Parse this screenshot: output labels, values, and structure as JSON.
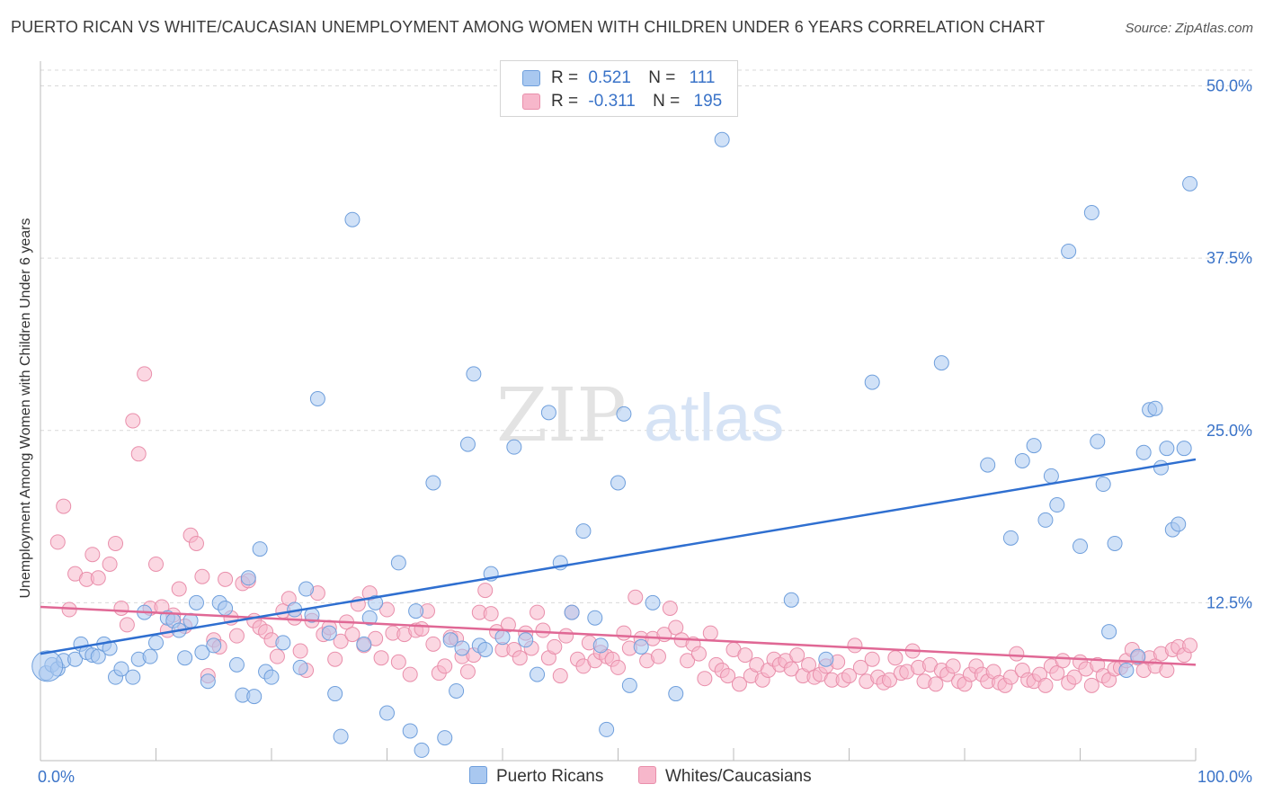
{
  "title": "PUERTO RICAN VS WHITE/CAUCASIAN UNEMPLOYMENT AMONG WOMEN WITH CHILDREN UNDER 6 YEARS CORRELATION CHART",
  "source": "Source: ZipAtlas.com",
  "watermark": {
    "zip": "ZIP",
    "atlas": "atlas"
  },
  "colors": {
    "blue_fill": "#a9c8f0",
    "blue_stroke": "#6f9fdc",
    "blue_line": "#2f6fd0",
    "pink_fill": "#f7b7cb",
    "pink_stroke": "#e98fab",
    "pink_line": "#e06895",
    "axis_label_blue": "#3a73c8",
    "grid": "#d9d9d9"
  },
  "legend": {
    "rows": [
      {
        "r_label": "R =",
        "r_value": "0.521",
        "n_label": "N =",
        "n_value": "111"
      },
      {
        "r_label": "R =",
        "r_value": "-0.311",
        "n_label": "N =",
        "n_value": "195"
      }
    ]
  },
  "chart_data": {
    "type": "scatter",
    "title": "PUERTO RICAN VS WHITE/CAUCASIAN UNEMPLOYMENT AMONG WOMEN WITH CHILDREN UNDER 6 YEARS CORRELATION CHART",
    "xlabel": "",
    "ylabel": "Unemployment Among Women with Children Under 6 years",
    "xlim": [
      0,
      100
    ],
    "ylim": [
      0,
      50
    ],
    "x_tick_labels": [
      "0.0%",
      "100.0%"
    ],
    "y_ticks": [
      12.5,
      25.0,
      37.5,
      50.0
    ],
    "y_tick_labels": [
      "12.5%",
      "25.0%",
      "37.5%",
      "50.0%"
    ],
    "grid": "horizontal dashed",
    "legend_position": "top-center",
    "series": [
      {
        "name": "Puerto Ricans",
        "R": 0.521,
        "N": 111,
        "trend": {
          "x": [
            0,
            100
          ],
          "y": [
            8.8,
            22.9
          ]
        },
        "points": [
          [
            0.5,
            7.4
          ],
          [
            1,
            8
          ],
          [
            1.5,
            7.7
          ],
          [
            2,
            8.3
          ],
          [
            3,
            8.4
          ],
          [
            3.5,
            9.5
          ],
          [
            4,
            8.9
          ],
          [
            4.5,
            8.7
          ],
          [
            5,
            8.6
          ],
          [
            5.5,
            9.5
          ],
          [
            6,
            9.2
          ],
          [
            6.5,
            7.1
          ],
          [
            7,
            7.7
          ],
          [
            8,
            7.1
          ],
          [
            8.5,
            8.4
          ],
          [
            9,
            11.8
          ],
          [
            9.5,
            8.6
          ],
          [
            10,
            9.6
          ],
          [
            11,
            11.4
          ],
          [
            11.5,
            11.2
          ],
          [
            12,
            10.5
          ],
          [
            12.5,
            8.5
          ],
          [
            13,
            11.2
          ],
          [
            13.5,
            12.5
          ],
          [
            14,
            8.9
          ],
          [
            14.5,
            6.8
          ],
          [
            15,
            9.4
          ],
          [
            15.5,
            12.5
          ],
          [
            16,
            12.1
          ],
          [
            17,
            8
          ],
          [
            17.5,
            5.8
          ],
          [
            18,
            14.3
          ],
          [
            18.5,
            5.7
          ],
          [
            19,
            16.4
          ],
          [
            19.5,
            7.5
          ],
          [
            20,
            7.1
          ],
          [
            21,
            9.6
          ],
          [
            22,
            12
          ],
          [
            22.5,
            7.8
          ],
          [
            23,
            13.5
          ],
          [
            23.5,
            11.6
          ],
          [
            24,
            27.3
          ],
          [
            25,
            10.3
          ],
          [
            25.5,
            5.9
          ],
          [
            26,
            2.8
          ],
          [
            27,
            40.3
          ],
          [
            28,
            9.5
          ],
          [
            28.5,
            11.4
          ],
          [
            29,
            12.5
          ],
          [
            30,
            4.5
          ],
          [
            31,
            15.4
          ],
          [
            32,
            3.2
          ],
          [
            32.5,
            11.9
          ],
          [
            33,
            1.8
          ],
          [
            34,
            21.2
          ],
          [
            35,
            2.7
          ],
          [
            35.5,
            9.8
          ],
          [
            36,
            6.1
          ],
          [
            36.5,
            9.2
          ],
          [
            37,
            24
          ],
          [
            37.5,
            29.1
          ],
          [
            38,
            9.4
          ],
          [
            38.5,
            9.1
          ],
          [
            39,
            14.6
          ],
          [
            40,
            10
          ],
          [
            41,
            23.8
          ],
          [
            42,
            9.8
          ],
          [
            43,
            7.3
          ],
          [
            44,
            26.3
          ],
          [
            45,
            15.4
          ],
          [
            46,
            11.8
          ],
          [
            47,
            17.7
          ],
          [
            48,
            11.4
          ],
          [
            48.5,
            9.4
          ],
          [
            49,
            3.3
          ],
          [
            50,
            21.2
          ],
          [
            50.5,
            26.2
          ],
          [
            51,
            6.5
          ],
          [
            52,
            9.3
          ],
          [
            53,
            12.5
          ],
          [
            55,
            5.9
          ],
          [
            59,
            46.1
          ],
          [
            65,
            12.7
          ],
          [
            68,
            8.4
          ],
          [
            72,
            28.5
          ],
          [
            78,
            29.9
          ],
          [
            82,
            22.5
          ],
          [
            84,
            17.2
          ],
          [
            85,
            22.8
          ],
          [
            86,
            23.9
          ],
          [
            87,
            18.5
          ],
          [
            87.5,
            21.7
          ],
          [
            88,
            19.6
          ],
          [
            89,
            38
          ],
          [
            90,
            16.6
          ],
          [
            91,
            40.8
          ],
          [
            91.5,
            24.2
          ],
          [
            92,
            21.1
          ],
          [
            92.5,
            10.4
          ],
          [
            93,
            16.8
          ],
          [
            94,
            7.6
          ],
          [
            95,
            8.6
          ],
          [
            95.5,
            23.4
          ],
          [
            96,
            26.5
          ],
          [
            96.5,
            26.6
          ],
          [
            97,
            22.3
          ],
          [
            97.5,
            23.7
          ],
          [
            98,
            17.8
          ],
          [
            98.5,
            18.2
          ],
          [
            99,
            23.7
          ],
          [
            99.5,
            42.9
          ]
        ]
      },
      {
        "name": "Whites/Caucasians",
        "R": -0.311,
        "N": 195,
        "trend": {
          "x": [
            0,
            100
          ],
          "y": [
            12.2,
            8.0
          ]
        },
        "points": [
          [
            1.5,
            16.9
          ],
          [
            2,
            19.5
          ],
          [
            2.5,
            12
          ],
          [
            3,
            14.6
          ],
          [
            4,
            14.2
          ],
          [
            4.5,
            16
          ],
          [
            5,
            14.3
          ],
          [
            6,
            15.3
          ],
          [
            6.5,
            16.8
          ],
          [
            7,
            12.1
          ],
          [
            7.5,
            10.9
          ],
          [
            8,
            25.7
          ],
          [
            8.5,
            23.3
          ],
          [
            9,
            29.1
          ],
          [
            9.5,
            12.1
          ],
          [
            10,
            15.3
          ],
          [
            10.5,
            12.2
          ],
          [
            11,
            10.5
          ],
          [
            11.5,
            11.6
          ],
          [
            12,
            13.5
          ],
          [
            12.5,
            10.8
          ],
          [
            13,
            17.4
          ],
          [
            13.5,
            16.8
          ],
          [
            14,
            14.4
          ],
          [
            14.5,
            7.2
          ],
          [
            15,
            9.8
          ],
          [
            15.5,
            9.3
          ],
          [
            16,
            14.2
          ],
          [
            16.5,
            11.4
          ],
          [
            17,
            10.1
          ],
          [
            17.5,
            13.9
          ],
          [
            18,
            14.1
          ],
          [
            18.5,
            11.2
          ],
          [
            19,
            10.7
          ],
          [
            19.5,
            10.4
          ],
          [
            20,
            9.8
          ],
          [
            20.5,
            8.6
          ],
          [
            21,
            11.9
          ],
          [
            21.5,
            12.8
          ],
          [
            22,
            11.4
          ],
          [
            22.5,
            9
          ],
          [
            23,
            7.6
          ],
          [
            23.5,
            11.2
          ],
          [
            24,
            13.2
          ],
          [
            24.5,
            10.2
          ],
          [
            25,
            10.7
          ],
          [
            25.5,
            8.4
          ],
          [
            26,
            9.7
          ],
          [
            26.5,
            11.1
          ],
          [
            27,
            10.2
          ],
          [
            27.5,
            12.4
          ],
          [
            28,
            9.4
          ],
          [
            28.5,
            13.2
          ],
          [
            29,
            9.9
          ],
          [
            29.5,
            8.5
          ],
          [
            30,
            12
          ],
          [
            30.5,
            10.3
          ],
          [
            31,
            8.2
          ],
          [
            31.5,
            10.2
          ],
          [
            32,
            7.3
          ],
          [
            32.5,
            10.5
          ],
          [
            33,
            10.6
          ],
          [
            33.5,
            11.9
          ],
          [
            34,
            9.5
          ],
          [
            34.5,
            7.4
          ],
          [
            35,
            7.9
          ],
          [
            35.5,
            10
          ],
          [
            36,
            9.9
          ],
          [
            36.5,
            8.6
          ],
          [
            37,
            7.5
          ],
          [
            37.5,
            8.7
          ],
          [
            38,
            11.8
          ],
          [
            38.5,
            13.4
          ],
          [
            39,
            11.7
          ],
          [
            39.5,
            10.4
          ],
          [
            40,
            9.1
          ],
          [
            40.5,
            10.9
          ],
          [
            41,
            9.1
          ],
          [
            41.5,
            8.5
          ],
          [
            42,
            10.3
          ],
          [
            42.5,
            9.2
          ],
          [
            43,
            11.8
          ],
          [
            43.5,
            10.5
          ],
          [
            44,
            8.5
          ],
          [
            44.5,
            9.3
          ],
          [
            45,
            7.2
          ],
          [
            45.5,
            10.1
          ],
          [
            46,
            11.8
          ],
          [
            46.5,
            8.4
          ],
          [
            47,
            7.9
          ],
          [
            47.5,
            9.6
          ],
          [
            48,
            8.3
          ],
          [
            48.5,
            8.9
          ],
          [
            49,
            8.6
          ],
          [
            49.5,
            8.4
          ],
          [
            50,
            7.8
          ],
          [
            50.5,
            10.3
          ],
          [
            51,
            9.2
          ],
          [
            51.5,
            12.9
          ],
          [
            52,
            9.9
          ],
          [
            52.5,
            8.3
          ],
          [
            53,
            9.9
          ],
          [
            53.5,
            8.6
          ],
          [
            54,
            10.2
          ],
          [
            54.5,
            12.1
          ],
          [
            55,
            10.7
          ],
          [
            55.5,
            9.8
          ],
          [
            56,
            8.3
          ],
          [
            56.5,
            9.5
          ],
          [
            57,
            8.8
          ],
          [
            57.5,
            7
          ],
          [
            58,
            10.3
          ],
          [
            58.5,
            8
          ],
          [
            59,
            7.6
          ],
          [
            59.5,
            7.2
          ],
          [
            60,
            9.1
          ],
          [
            60.5,
            6.6
          ],
          [
            61,
            8.7
          ],
          [
            61.5,
            7.2
          ],
          [
            62,
            8
          ],
          [
            62.5,
            6.9
          ],
          [
            63,
            7.6
          ],
          [
            63.5,
            8.4
          ],
          [
            64,
            8
          ],
          [
            64.5,
            8.3
          ],
          [
            65,
            7.7
          ],
          [
            65.5,
            8.7
          ],
          [
            66,
            7.2
          ],
          [
            66.5,
            8
          ],
          [
            67,
            7.1
          ],
          [
            67.5,
            7.3
          ],
          [
            68,
            7.9
          ],
          [
            68.5,
            6.9
          ],
          [
            69,
            8.2
          ],
          [
            69.5,
            6.9
          ],
          [
            70,
            7.2
          ],
          [
            70.5,
            9.4
          ],
          [
            71,
            7.8
          ],
          [
            71.5,
            6.8
          ],
          [
            72,
            8.4
          ],
          [
            72.5,
            7.1
          ],
          [
            73,
            6.7
          ],
          [
            73.5,
            6.9
          ],
          [
            74,
            8.5
          ],
          [
            74.5,
            7.4
          ],
          [
            75,
            7.5
          ],
          [
            75.5,
            9
          ],
          [
            76,
            7.8
          ],
          [
            76.5,
            6.8
          ],
          [
            77,
            8
          ],
          [
            77.5,
            6.6
          ],
          [
            78,
            7.6
          ],
          [
            78.5,
            7.3
          ],
          [
            79,
            7.9
          ],
          [
            79.5,
            6.8
          ],
          [
            80,
            6.6
          ],
          [
            80.5,
            7.3
          ],
          [
            81,
            7.9
          ],
          [
            81.5,
            7.3
          ],
          [
            82,
            6.8
          ],
          [
            82.5,
            7.5
          ],
          [
            83,
            6.7
          ],
          [
            83.5,
            6.5
          ],
          [
            84,
            7.1
          ],
          [
            84.5,
            8.8
          ],
          [
            85,
            7.6
          ],
          [
            85.5,
            6.9
          ],
          [
            86,
            6.8
          ],
          [
            86.5,
            7.3
          ],
          [
            87,
            6.5
          ],
          [
            87.5,
            7.9
          ],
          [
            88,
            7.4
          ],
          [
            88.5,
            8.3
          ],
          [
            89,
            6.7
          ],
          [
            89.5,
            7.1
          ],
          [
            90,
            8.2
          ],
          [
            90.5,
            7.7
          ],
          [
            91,
            6.5
          ],
          [
            91.5,
            8
          ],
          [
            92,
            7.2
          ],
          [
            92.5,
            6.9
          ],
          [
            93,
            7.7
          ],
          [
            93.5,
            7.8
          ],
          [
            94,
            8.3
          ],
          [
            94.5,
            9.1
          ],
          [
            95,
            8.5
          ],
          [
            95.5,
            7.6
          ],
          [
            96,
            8.5
          ],
          [
            96.5,
            7.9
          ],
          [
            97,
            8.8
          ],
          [
            97.5,
            7.6
          ],
          [
            98,
            9.1
          ],
          [
            98.5,
            9.3
          ],
          [
            99,
            8.7
          ],
          [
            99.5,
            9.4
          ]
        ]
      }
    ]
  },
  "bottom_legend": {
    "series1": "Puerto Ricans",
    "series2": "Whites/Caucasians"
  }
}
